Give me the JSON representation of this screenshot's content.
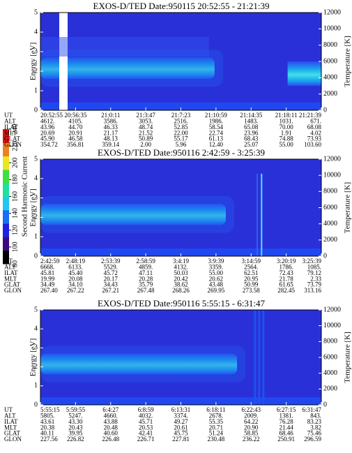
{
  "colorbar": {
    "label": "Second Harmonic Current",
    "lim": [
      80,
      240
    ],
    "ticks": [
      80,
      100,
      120,
      140,
      160,
      180,
      200,
      220,
      240
    ]
  },
  "chart_data": [
    {
      "type": "spectrogram",
      "title": "EXOS-D/TED   Date:950115  20:52:55 - 21:21:39",
      "y_label": "Energy [eV]",
      "y2_label": "Temperature [K]",
      "ylim": [
        0,
        5
      ],
      "yticks": [
        0,
        1,
        2,
        3,
        4,
        5
      ],
      "y2lim": [
        0,
        12000
      ],
      "y2ticks": [
        0,
        2000,
        4000,
        6000,
        8000,
        10000,
        12000
      ],
      "table": {
        "row_labels": [
          "UT",
          "ALT",
          "ILAT",
          "MLT",
          "GLAT",
          "GLON"
        ],
        "rows": [
          [
            "20:52:55",
            "20:56:35",
            "21:0:11",
            "21:3:47",
            "21:7:23",
            "21:10:59",
            "21:14:35",
            "21:18:11",
            "21:21:39"
          ],
          [
            "4612.",
            "4105.",
            "3586.",
            "3053.",
            "2516.",
            "1986.",
            "1483.",
            "1031.",
            "671."
          ],
          [
            "43.96",
            "44.70",
            "46.33",
            "48.74",
            "52.85",
            "58.54",
            "65.08",
            "70.00",
            "68.08"
          ],
          [
            "20.69",
            "20.91",
            "21.17",
            "21.52",
            "22.00",
            "22.74",
            "23.96",
            "1.91",
            "4.02"
          ],
          [
            "45.90",
            "46.58",
            "48.13",
            "50.89",
            "55.17",
            "61.13",
            "68.43",
            "74.88",
            "73.93"
          ],
          [
            "354.72",
            "356.81",
            "359.14",
            "2.00",
            "5.96",
            "12.40",
            "25.07",
            "55.00",
            "103.60"
          ]
        ]
      }
    },
    {
      "type": "spectrogram",
      "title": "EXOS-D/TED   Date:950116  2:42:59 - 3:25:39",
      "y_label": "Energy [eV]",
      "y2_label": "Temperature [K]",
      "ylim": [
        0,
        5
      ],
      "yticks": [
        0,
        1,
        2,
        3,
        4,
        5
      ],
      "y2lim": [
        0,
        12000
      ],
      "y2ticks": [
        0,
        2000,
        4000,
        6000,
        8000,
        10000,
        12000
      ],
      "table": {
        "row_labels": [
          "UT",
          "ALT",
          "ILAT",
          "MLT",
          "GLAT",
          "GLON"
        ],
        "rows": [
          [
            "2:42:59",
            "2:48:19",
            "2:53:39",
            "2:58:59",
            "3:4:19",
            "3:9:39",
            "3:14:59",
            "3:20:19",
            "3:25:39"
          ],
          [
            "6668.",
            "6133.",
            "5529.",
            "4859.",
            "4132.",
            "3359.",
            "2564.",
            "1786.",
            "1085."
          ],
          [
            "45.81",
            "45.40",
            "45.72",
            "47.11",
            "50.03",
            "55.00",
            "62.51",
            "72.43",
            "79.12"
          ],
          [
            "19.99",
            "20.08",
            "20.17",
            "20.28",
            "20.42",
            "20.62",
            "20.95",
            "21.78",
            "2.33"
          ],
          [
            "34.49",
            "34.10",
            "34.43",
            "35.79",
            "38.62",
            "43.48",
            "50.99",
            "61.65",
            "73.79"
          ],
          [
            "267.40",
            "267.22",
            "267.21",
            "267.48",
            "268.26",
            "269.95",
            "273.58",
            "282.45",
            "313.16"
          ]
        ]
      }
    },
    {
      "type": "spectrogram",
      "title": "EXOS-D/TED   Date:950116  5:55:15 - 6:31:47",
      "y_label": "Energy [eV]",
      "y2_label": "Temperature [K]",
      "ylim": [
        0,
        5
      ],
      "yticks": [
        0,
        1,
        2,
        3,
        4,
        5
      ],
      "y2lim": [
        0,
        12000
      ],
      "y2ticks": [
        0,
        2000,
        4000,
        6000,
        8000,
        10000,
        12000
      ],
      "table": {
        "row_labels": [
          "UT",
          "ALT",
          "ILAT",
          "MLT",
          "GLAT",
          "GLON"
        ],
        "rows": [
          [
            "5:55:15",
            "5:59:55",
            "6:4:27",
            "6:8:59",
            "6:13:31",
            "6:18:11",
            "6:22:43",
            "6:27:15",
            "6:31:47"
          ],
          [
            "5805.",
            "5247.",
            "4660.",
            "4032.",
            "3374.",
            "2678.",
            "2009.",
            "1381.",
            "843."
          ],
          [
            "43.61",
            "43.30",
            "43.88",
            "45.71",
            "49.27",
            "55.35",
            "64.22",
            "76.28",
            "83.23"
          ],
          [
            "20.38",
            "20.43",
            "20.48",
            "20.53",
            "20.61",
            "20.71",
            "20.90",
            "21.44",
            "3.82"
          ],
          [
            "40.11",
            "39.95",
            "40.60",
            "42.41",
            "45.75",
            "51.24",
            "58.85",
            "68.46",
            "75.46"
          ],
          [
            "227.56",
            "226.82",
            "226.48",
            "226.71",
            "227.81",
            "230.48",
            "236.22",
            "250.91",
            "296.59"
          ]
        ]
      }
    }
  ]
}
